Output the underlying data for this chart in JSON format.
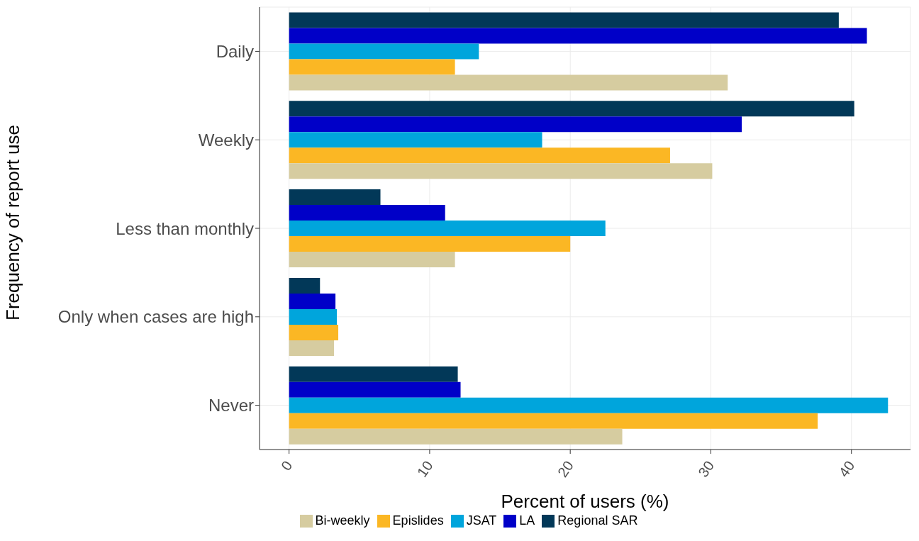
{
  "chart_data": {
    "type": "bar",
    "orientation": "horizontal",
    "xlabel": "Percent of users (%)",
    "ylabel": "Frequency of report use",
    "categories": [
      "Daily",
      "Weekly",
      "Less than monthly",
      "Only when cases are high",
      "Never"
    ],
    "series": [
      {
        "name": "Regional SAR",
        "color": "#023858",
        "values": [
          39.1,
          40.2,
          6.5,
          2.2,
          12.0
        ]
      },
      {
        "name": "LA",
        "color": "#0000c8",
        "values": [
          41.1,
          32.2,
          11.1,
          3.3,
          12.2
        ]
      },
      {
        "name": "JSAT",
        "color": "#00a5dc",
        "values": [
          13.5,
          18.0,
          22.5,
          3.4,
          42.6
        ]
      },
      {
        "name": "Epislides",
        "color": "#fbb724",
        "values": [
          11.8,
          27.1,
          20.0,
          3.5,
          37.6
        ]
      },
      {
        "name": "Bi-weekly",
        "color": "#d6cca0",
        "values": [
          31.2,
          30.1,
          11.8,
          3.2,
          23.7
        ]
      }
    ],
    "xlim": [
      -2.1,
      44.2
    ],
    "xticks": [
      0,
      10,
      20,
      30,
      40
    ],
    "grid": true,
    "legend": "bottom"
  }
}
